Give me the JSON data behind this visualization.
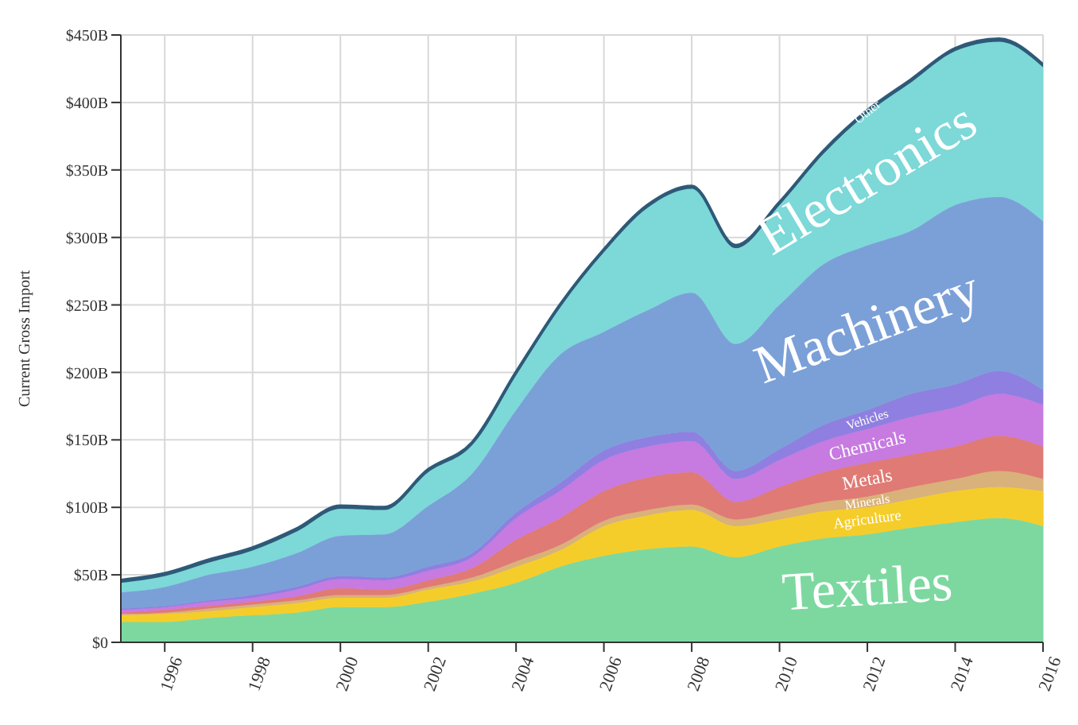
{
  "chart_data": {
    "type": "area",
    "stacked": true,
    "ylabel": "Current Gross Import",
    "x": [
      1995,
      1996,
      1997,
      1998,
      1999,
      2000,
      2001,
      2002,
      2003,
      2004,
      2005,
      2006,
      2007,
      2008,
      2009,
      2010,
      2011,
      2012,
      2013,
      2014,
      2015,
      2016
    ],
    "series": [
      {
        "name": "Textiles",
        "color": "#7dd8a0",
        "values": [
          15,
          15,
          18,
          20,
          22,
          26,
          26,
          30,
          36,
          44,
          56,
          64,
          69,
          71,
          63,
          71,
          77,
          80,
          85,
          89,
          92,
          86
        ]
      },
      {
        "name": "Agriculture",
        "color": "#f5cd2a",
        "values": [
          5,
          6,
          5,
          6,
          7,
          7,
          7,
          9,
          9,
          12,
          12,
          22,
          25,
          27,
          23,
          20,
          20,
          20,
          21,
          23,
          23,
          26
        ]
      },
      {
        "name": "Minerals",
        "color": "#d9b17a",
        "values": [
          1,
          1,
          2,
          2,
          2,
          2,
          2,
          2,
          3,
          4,
          4,
          4,
          4,
          4,
          5,
          6,
          7,
          8,
          9,
          9,
          12,
          9
        ]
      },
      {
        "name": "Metals",
        "color": "#e07a74",
        "values": [
          1,
          2,
          2,
          2,
          3,
          5,
          4,
          5,
          7,
          16,
          20,
          22,
          24,
          24,
          13,
          18,
          22,
          25,
          24,
          24,
          26,
          24
        ]
      },
      {
        "name": "Chemicals",
        "color": "#c77ae0",
        "values": [
          2,
          2,
          3,
          3,
          5,
          7,
          7,
          7,
          8,
          16,
          20,
          23,
          23,
          23,
          17,
          20,
          23,
          25,
          28,
          29,
          31,
          31
        ]
      },
      {
        "name": "Vehicles",
        "color": "#8f7fe0",
        "values": [
          1,
          1,
          1,
          2,
          2,
          2,
          2,
          3,
          3,
          4,
          6,
          7,
          7,
          7,
          6,
          8,
          12,
          14,
          17,
          17,
          17,
          11
        ]
      },
      {
        "name": "Machinery",
        "color": "#7ba0d8",
        "values": [
          12,
          14,
          19,
          21,
          25,
          30,
          32,
          45,
          59,
          76,
          95,
          88,
          94,
          103,
          94,
          107,
          119,
          122,
          121,
          133,
          129,
          125
        ]
      },
      {
        "name": "Electronics",
        "color": "#7dd8d8",
        "values": [
          7,
          8,
          9,
          12,
          16,
          20,
          18,
          25,
          21,
          26,
          35,
          59,
          76,
          77,
          71,
          74,
          82,
          98,
          110,
          114,
          115,
          114
        ]
      },
      {
        "name": "Other",
        "color": "#2e5a78",
        "values": [
          2,
          2,
          2,
          2,
          2,
          2,
          2,
          2,
          2,
          2,
          2,
          2,
          2,
          2,
          2,
          2,
          2,
          2,
          2,
          2,
          2,
          2
        ]
      }
    ],
    "xlim": [
      1995,
      2016
    ],
    "xticks": [
      1996,
      1998,
      2000,
      2002,
      2004,
      2006,
      2008,
      2010,
      2012,
      2014,
      2016
    ],
    "ylim": [
      0,
      450
    ],
    "yticks": [
      {
        "value": 0,
        "label": "$0"
      },
      {
        "value": 50,
        "label": "$50B"
      },
      {
        "value": 100,
        "label": "$100B"
      },
      {
        "value": 150,
        "label": "$150B"
      },
      {
        "value": 200,
        "label": "$200B"
      },
      {
        "value": 250,
        "label": "$250B"
      },
      {
        "value": 300,
        "label": "$300B"
      },
      {
        "value": 350,
        "label": "$350B"
      },
      {
        "value": 400,
        "label": "$400B"
      },
      {
        "value": 450,
        "label": "$450B"
      }
    ],
    "grid": true,
    "legend": false
  }
}
